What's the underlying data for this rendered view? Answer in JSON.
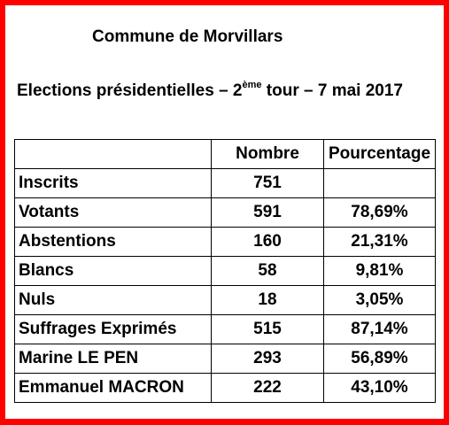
{
  "heading": {
    "commune": "Commune de Morvillars",
    "election_prefix": "Elections présidentielles – 2",
    "election_sup": "ème",
    "election_suffix": " tour – 7 mai 2017"
  },
  "table": {
    "headers": [
      "",
      "Nombre",
      "Pourcentage"
    ],
    "rows": [
      {
        "label": "Inscrits",
        "nombre": "751",
        "pct": ""
      },
      {
        "label": "Votants",
        "nombre": "591",
        "pct": "78,69%"
      },
      {
        "label": "Abstentions",
        "nombre": "160",
        "pct": "21,31%"
      },
      {
        "label": "Blancs",
        "nombre": "58",
        "pct": "9,81%"
      },
      {
        "label": "Nuls",
        "nombre": "18",
        "pct": "3,05%"
      },
      {
        "label": "Suffrages Exprimés",
        "nombre": "515",
        "pct": "87,14%"
      },
      {
        "label": "Marine LE PEN",
        "nombre": "293",
        "pct": "56,89%"
      },
      {
        "label": "Emmanuel MACRON",
        "nombre": "222",
        "pct": "43,10%"
      }
    ]
  },
  "colors": {
    "frame": "#ff0000",
    "text": "#000000",
    "background": "#ffffff"
  }
}
